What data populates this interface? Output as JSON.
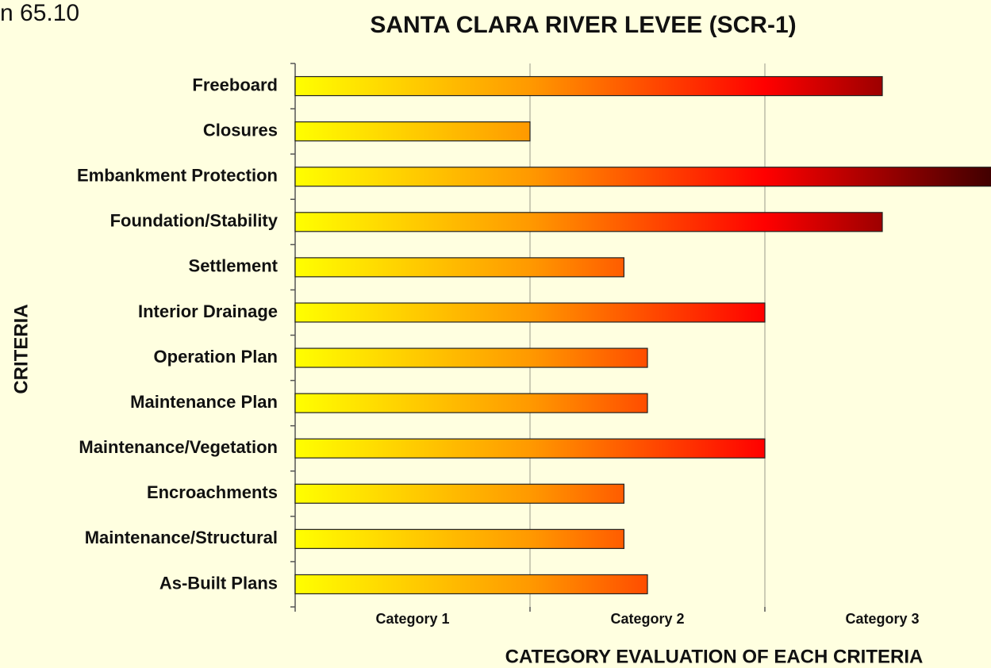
{
  "chart_data": {
    "type": "barh",
    "corner_text": "n 65.10",
    "title": "SANTA CLARA RIVER LEVEE (SCR-1)",
    "xlabel": "CATEGORY EVALUATION OF EACH CRITERIA",
    "ylabel": "CRITERIA",
    "categories": [
      "Freeboard",
      "Closures",
      "Embankment Protection",
      "Foundation/Stability",
      "Settlement",
      "Interior Drainage",
      "Operation Plan",
      "Maintenance Plan",
      "Maintenance/Vegetation",
      "Encroachments",
      "Maintenance/Structural",
      "As-Built Plans"
    ],
    "values": [
      2.5,
      1.0,
      3.0,
      2.5,
      1.4,
      2.0,
      1.5,
      1.5,
      2.0,
      1.4,
      1.4,
      1.5
    ],
    "xlim": [
      0,
      3
    ],
    "xticks": [
      0,
      1,
      2,
      3
    ],
    "band_labels": [
      "Category 1",
      "Category 2",
      "Category 3"
    ],
    "gradient": [
      "#ffff00",
      "#ff9900",
      "#ff0000",
      "#3a0000"
    ],
    "grid": true
  }
}
